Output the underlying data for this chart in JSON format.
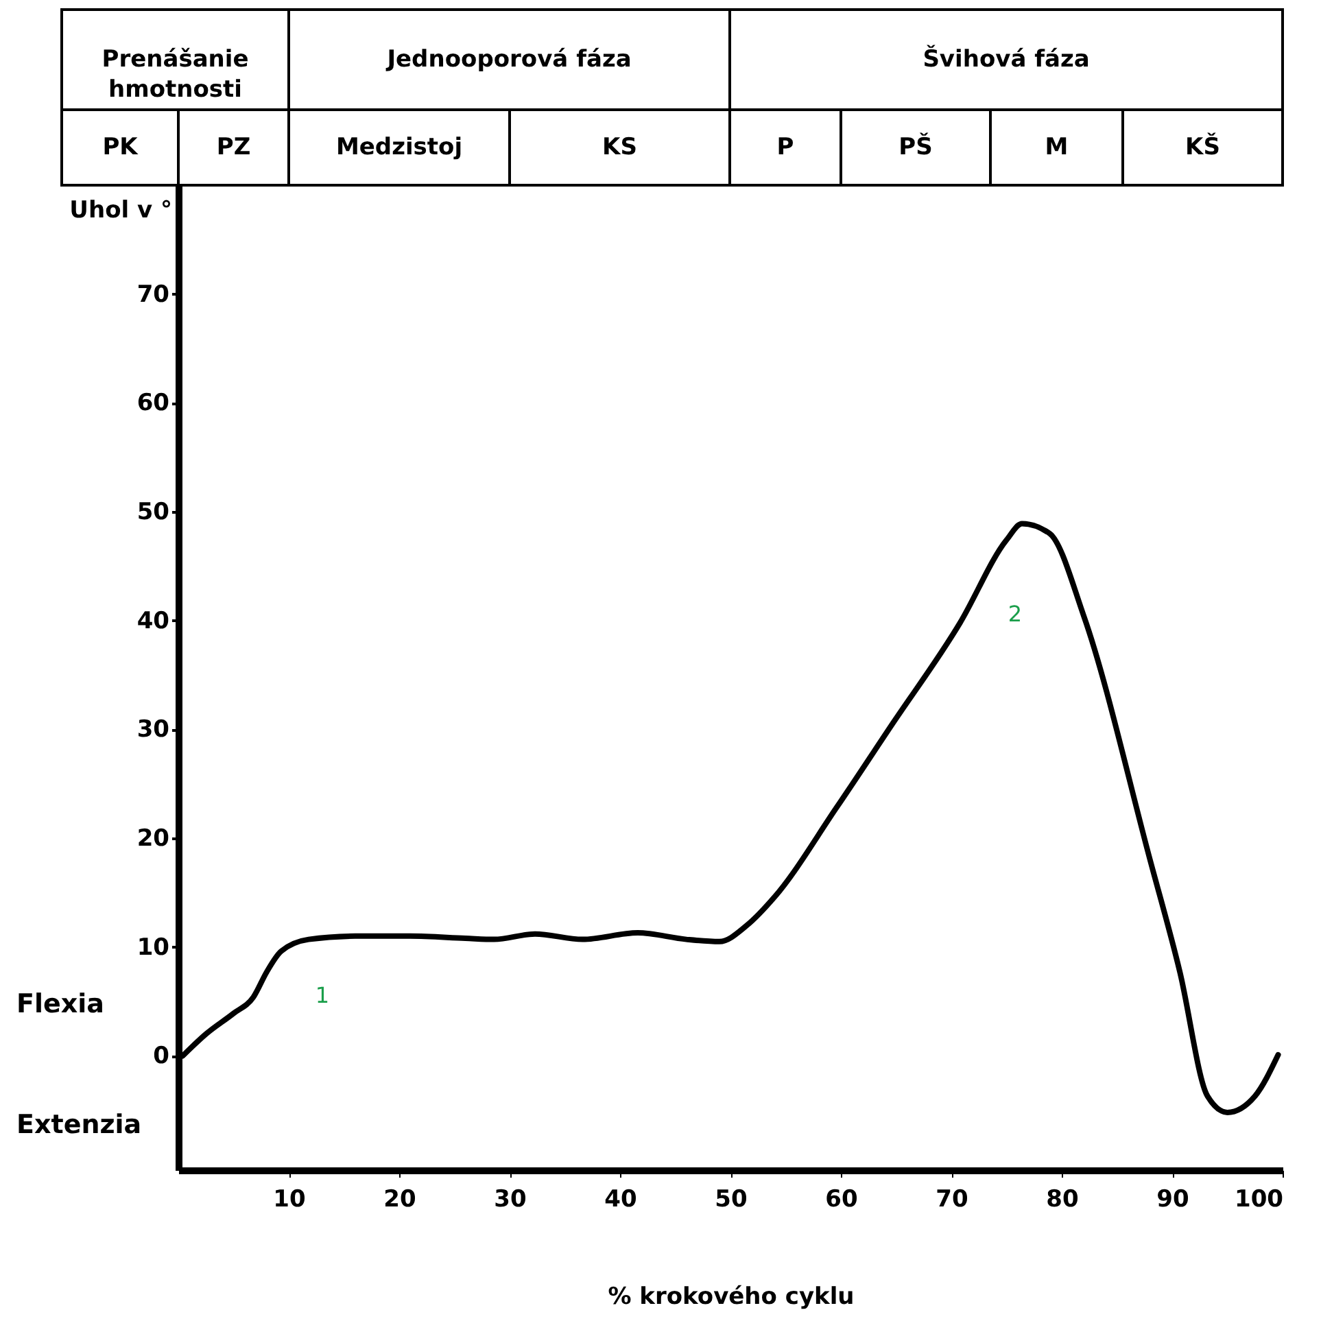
{
  "chart_data": {
    "type": "line",
    "xlabel": "% krokového cyklu",
    "ylabel": "Uhol v °",
    "xlim": [
      0,
      100
    ],
    "ylim": [
      -10.5,
      80
    ],
    "xticks": [
      10,
      20,
      30,
      40,
      50,
      60,
      70,
      80,
      90,
      100
    ],
    "yticks": [
      0,
      10,
      20,
      30,
      40,
      50,
      60,
      70
    ],
    "x": [
      0.4,
      2.5,
      5,
      6.8,
      8,
      9.3,
      11.8,
      16,
      21,
      26,
      28.6,
      32.3,
      36.6,
      41.6,
      46,
      49,
      51.5,
      54,
      59.6,
      64.6,
      70.8,
      75,
      76.4,
      78.9,
      82,
      88,
      90.7,
      93.2,
      95,
      97.5,
      99.6
    ],
    "series": [
      {
        "color": "#000000",
        "values": [
          0,
          2,
          3.9,
          5.4,
          7.7,
          9.6,
          10.7,
          11,
          11,
          10.8,
          10.7,
          11.2,
          10.7,
          11.3,
          10.7,
          10.5,
          12,
          14.6,
          22.8,
          30.4,
          39.8,
          47.4,
          48.9,
          48,
          40.4,
          18,
          7.7,
          -3.7,
          -5.2,
          -3.7,
          0.1
        ]
      }
    ],
    "annotations": [
      "Prenášanie hmotnosti",
      "Jednooporová fáza",
      "Švihová fáza",
      "PK",
      "PZ",
      "Medzistoj",
      "KS",
      "P",
      "PŠ",
      "M",
      "KŠ",
      "Flexia",
      "Extenzia",
      "1",
      "2"
    ],
    "grid": false
  }
}
